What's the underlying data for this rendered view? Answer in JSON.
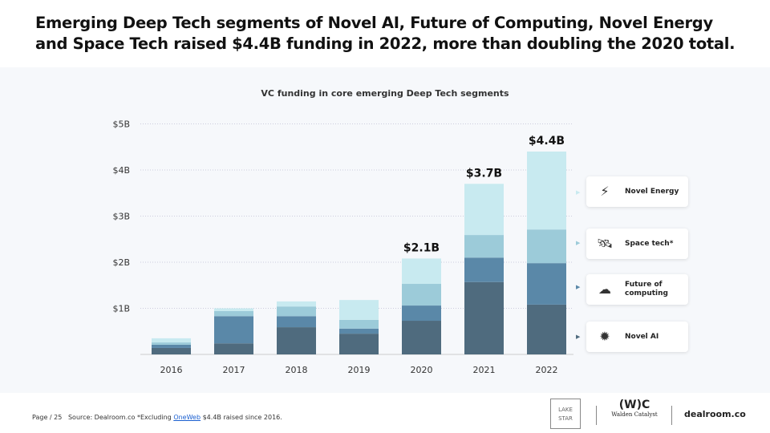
{
  "title": "Emerging Deep Tech segments of Novel AI, Future of Computing, Novel Energy and Space Tech raised $4.4B funding in 2022, more than doubling the 2020 total.",
  "chart_data": {
    "type": "bar",
    "stacked": true,
    "title": "VC funding in core emerging Deep Tech segments",
    "categories": [
      "2016",
      "2017",
      "2018",
      "2019",
      "2020",
      "2021",
      "2022"
    ],
    "series": [
      {
        "name": "Novel AI",
        "color": "#4f6b7e",
        "values": [
          0.14,
          0.24,
          0.59,
          0.45,
          0.73,
          1.57,
          1.08
        ]
      },
      {
        "name": "Future of computing",
        "color": "#5a88a8",
        "values": [
          0.07,
          0.59,
          0.24,
          0.11,
          0.33,
          0.53,
          0.9
        ]
      },
      {
        "name": "Space tech*",
        "color": "#9ccbd9",
        "values": [
          0.05,
          0.11,
          0.21,
          0.19,
          0.47,
          0.49,
          0.73
        ]
      },
      {
        "name": "Novel Energy",
        "color": "#c8eaf0",
        "values": [
          0.09,
          0.06,
          0.11,
          0.43,
          0.55,
          1.11,
          1.69
        ]
      }
    ],
    "total_labels": {
      "2020": "$2.1B",
      "2021": "$3.7B",
      "2022": "$4.4B"
    },
    "yticks": [
      "$1B",
      "$2B",
      "$3B",
      "$4B",
      "$5B"
    ],
    "ylim": [
      0,
      5
    ],
    "ylabel": "",
    "xlabel": "",
    "grid": true,
    "legend": "right"
  },
  "legend": [
    {
      "label": "Novel Energy",
      "icon": "lightning-icon"
    },
    {
      "label": "Space tech*",
      "icon": "satellite-icon"
    },
    {
      "label": "Future of computing",
      "icon": "cloud-computing-icon"
    },
    {
      "label": "Novel AI",
      "icon": "ai-chip-icon"
    }
  ],
  "footer": {
    "page": "Page / 25",
    "source": "Source: Dealroom.co *Excluding",
    "link": "OneWeb",
    "rest": "$4.4B raised since 2016."
  },
  "logos": {
    "lakestar": "LAKE STAR",
    "walden": "Walden Catalyst",
    "walden_mark": "(W)C",
    "dealroom": "dealroom.co"
  }
}
